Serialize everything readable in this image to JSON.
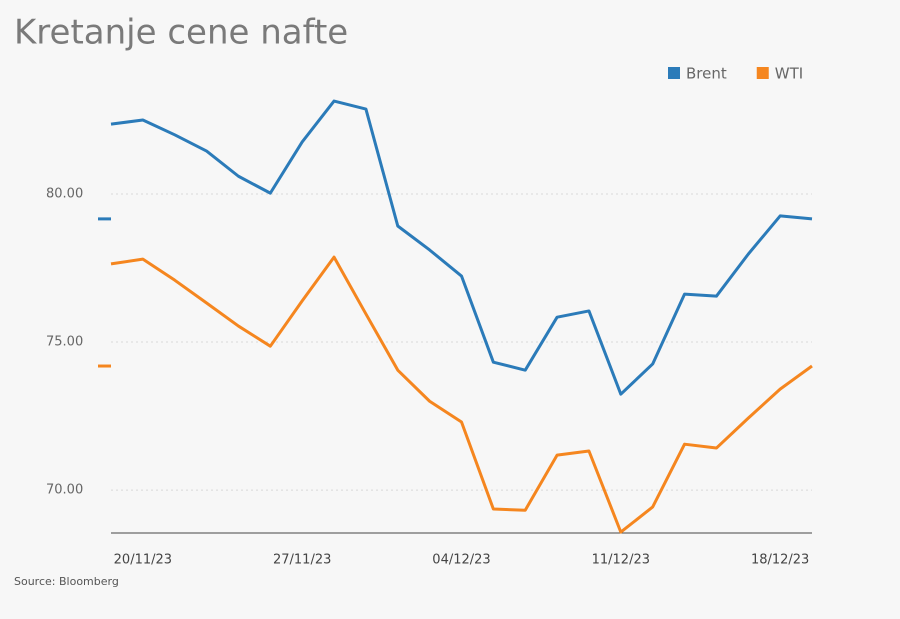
{
  "chart_data": {
    "type": "line",
    "title": "Kretanje cene nafte",
    "source": "Source: Bloomberg",
    "categories": [
      null,
      "20/11/23",
      null,
      null,
      null,
      null,
      "27/11/23",
      null,
      null,
      null,
      null,
      "04/12/23",
      null,
      null,
      null,
      null,
      "11/12/23",
      null,
      null,
      null,
      null,
      "18/12/23",
      null
    ],
    "series": [
      {
        "name": "Brent",
        "color": "#2b7bb9",
        "values": [
          82.36,
          82.5,
          82.0,
          81.45,
          80.6,
          80.03,
          81.76,
          83.14,
          82.87,
          78.92,
          78.11,
          77.23,
          74.32,
          74.05,
          75.84,
          76.05,
          73.24,
          74.26,
          76.62,
          76.55,
          77.97,
          79.26,
          79.16
        ]
      },
      {
        "name": "WTI",
        "color": "#f5861f",
        "values": [
          77.64,
          77.8,
          77.09,
          76.32,
          75.54,
          74.86,
          76.39,
          77.87,
          75.95,
          74.05,
          73.0,
          72.3,
          69.36,
          69.32,
          71.18,
          71.32,
          68.58,
          69.43,
          71.55,
          71.42,
          72.43,
          73.41,
          74.19
        ]
      }
    ],
    "ylim": [
      68.55,
      84
    ],
    "yticks": [
      {
        "value": 70,
        "label": "70.00"
      },
      {
        "value": 75,
        "label": "75.00"
      },
      {
        "value": 80,
        "label": "80.00"
      }
    ],
    "grid": true,
    "legend": "top-right"
  }
}
